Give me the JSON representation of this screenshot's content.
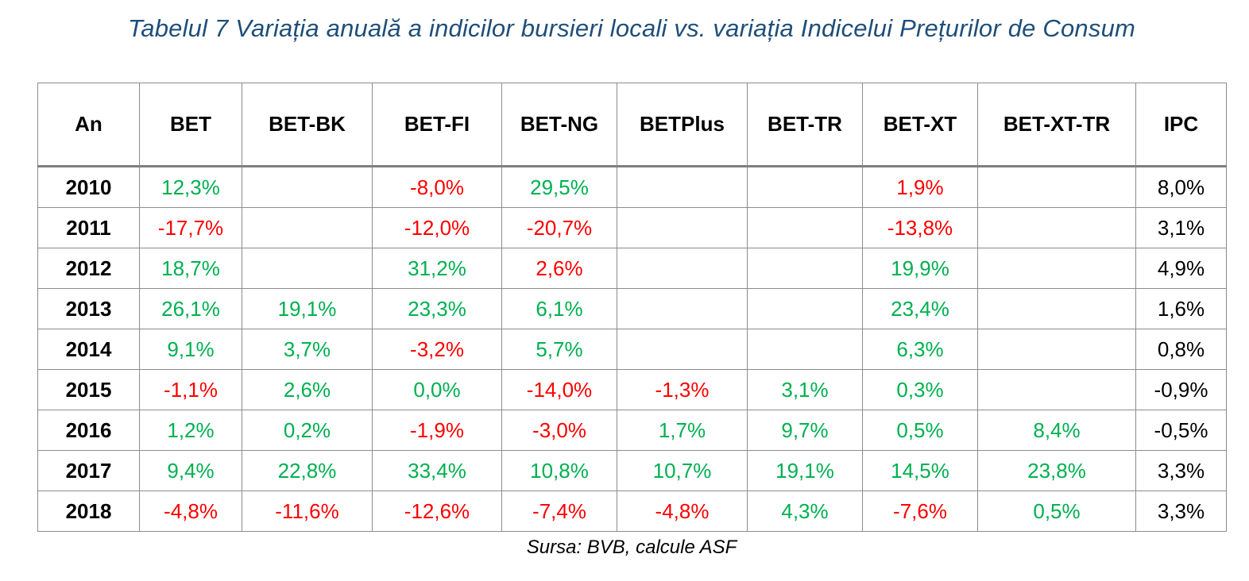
{
  "caption": "Tabelul 7 Variația anuală a indicilor bursieri locali vs. variația Indicelui Prețurilor de Consum",
  "colors": {
    "positive": "#00b050",
    "negative": "#ff0000",
    "caption": "#1f4e79"
  },
  "table": {
    "headers": [
      "An",
      "BET",
      "BET-BK",
      "BET-FI",
      "BET-NG",
      "BETPlus",
      "BET-TR",
      "BET-XT",
      "BET-XT-TR",
      "IPC"
    ],
    "rows": [
      {
        "year": "2010",
        "cells": [
          "12,3%",
          "",
          "-8,0%",
          "29,5%",
          "",
          "",
          "1,9%",
          "",
          "8,0%"
        ]
      },
      {
        "year": "2011",
        "cells": [
          "-17,7%",
          "",
          "-12,0%",
          "-20,7%",
          "",
          "",
          "-13,8%",
          "",
          "3,1%"
        ]
      },
      {
        "year": "2012",
        "cells": [
          "18,7%",
          "",
          "31,2%",
          "2,6%",
          "",
          "",
          "19,9%",
          "",
          "4,9%"
        ]
      },
      {
        "year": "2013",
        "cells": [
          "26,1%",
          "19,1%",
          "23,3%",
          "6,1%",
          "",
          "",
          "23,4%",
          "",
          "1,6%"
        ]
      },
      {
        "year": "2014",
        "cells": [
          "9,1%",
          "3,7%",
          "-3,2%",
          "5,7%",
          "",
          "",
          "6,3%",
          "",
          "0,8%"
        ]
      },
      {
        "year": "2015",
        "cells": [
          "-1,1%",
          "2,6%",
          "0,0%",
          "-14,0%",
          "-1,3%",
          "3,1%",
          "0,3%",
          "",
          "-0,9%"
        ]
      },
      {
        "year": "2016",
        "cells": [
          "1,2%",
          "0,2%",
          "-1,9%",
          "-3,0%",
          "1,7%",
          "9,7%",
          "0,5%",
          "8,4%",
          "-0,5%"
        ]
      },
      {
        "year": "2017",
        "cells": [
          "9,4%",
          "22,8%",
          "33,4%",
          "10,8%",
          "10,7%",
          "19,1%",
          "14,5%",
          "23,8%",
          "3,3%"
        ]
      },
      {
        "year": "2018",
        "cells": [
          "-4,8%",
          "-11,6%",
          "-12,6%",
          "-7,4%",
          "-4,8%",
          "4,3%",
          "-7,6%",
          "0,5%",
          "3,3%"
        ]
      }
    ],
    "cell_tones": [
      [
        "pos",
        "",
        "neg",
        "pos",
        "",
        "",
        "neg",
        "",
        "ipc"
      ],
      [
        "neg",
        "",
        "neg",
        "neg",
        "",
        "",
        "neg",
        "",
        "ipc"
      ],
      [
        "pos",
        "",
        "pos",
        "neg",
        "",
        "",
        "pos",
        "",
        "ipc"
      ],
      [
        "pos",
        "pos",
        "pos",
        "pos",
        "",
        "",
        "pos",
        "",
        "ipc"
      ],
      [
        "pos",
        "pos",
        "neg",
        "pos",
        "",
        "",
        "pos",
        "",
        "ipc"
      ],
      [
        "neg",
        "pos",
        "pos",
        "neg",
        "neg",
        "pos",
        "pos",
        "",
        "ipc"
      ],
      [
        "pos",
        "pos",
        "neg",
        "neg",
        "pos",
        "pos",
        "pos",
        "pos",
        "ipc"
      ],
      [
        "pos",
        "pos",
        "pos",
        "pos",
        "pos",
        "pos",
        "pos",
        "pos",
        "ipc"
      ],
      [
        "neg",
        "neg",
        "neg",
        "neg",
        "neg",
        "pos",
        "neg",
        "pos",
        "ipc"
      ]
    ]
  },
  "source": "Sursa: BVB, calcule ASF"
}
